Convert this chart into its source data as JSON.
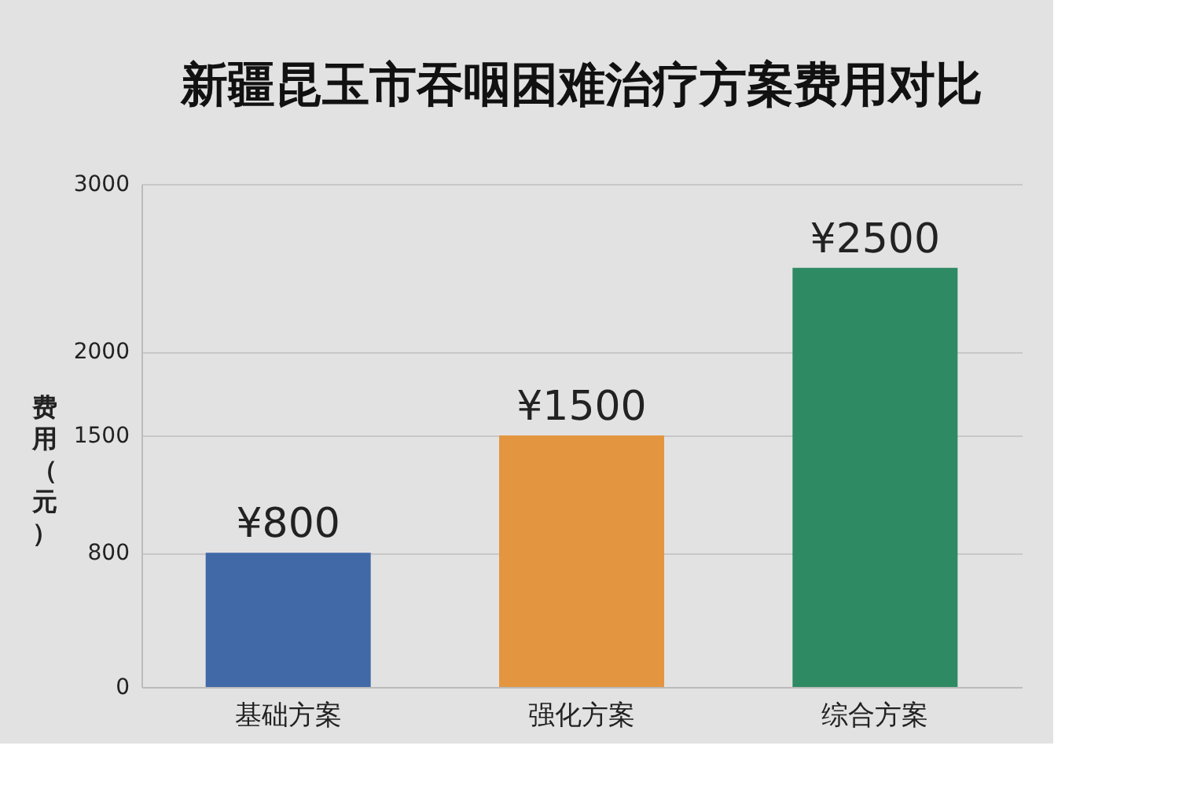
{
  "chart_data": {
    "type": "bar",
    "title": "新疆昆玉市吞咽困难治疗方案费用对比",
    "ylabel": "费用（元）",
    "categories": [
      "基础方案",
      "强化方案",
      "综合方案"
    ],
    "values": [
      800,
      1500,
      2500
    ],
    "colors": [
      "#4169a8",
      "#e3963f",
      "#2e8a63"
    ],
    "value_labels": [
      "¥800",
      "¥1500",
      "¥2500"
    ],
    "ylim": [
      0,
      3000
    ],
    "yticks": [
      0,
      800,
      1500,
      2000,
      3000
    ],
    "grid": "y"
  }
}
